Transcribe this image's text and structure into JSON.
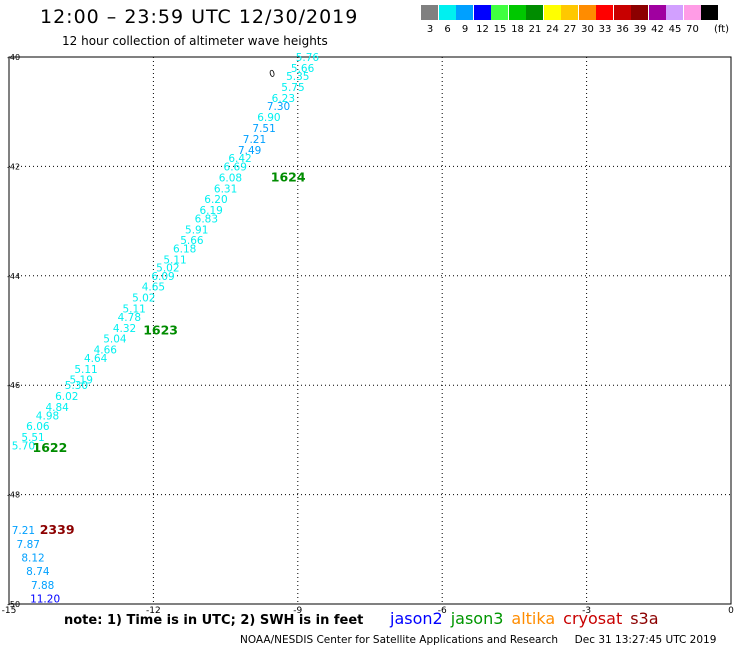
{
  "header": {
    "title": "12:00 – 23:59 UTC 12/30/2019",
    "subtitle": "12 hour collection of altimeter wave heights"
  },
  "color_scale": {
    "unit_label": "(ft)",
    "bins": [
      {
        "label": "3",
        "color": "#808080"
      },
      {
        "label": "6",
        "color": "#00f0f0"
      },
      {
        "label": "9",
        "color": "#00a0ff"
      },
      {
        "label": "12",
        "color": "#0000ff"
      },
      {
        "label": "15",
        "color": "#40ff40"
      },
      {
        "label": "18",
        "color": "#00c800"
      },
      {
        "label": "21",
        "color": "#008c00"
      },
      {
        "label": "24",
        "color": "#ffff00"
      },
      {
        "label": "27",
        "color": "#ffc800"
      },
      {
        "label": "30",
        "color": "#ff8c00"
      },
      {
        "label": "33",
        "color": "#ff0000"
      },
      {
        "label": "36",
        "color": "#c80000"
      },
      {
        "label": "39",
        "color": "#8c0000"
      },
      {
        "label": "42",
        "color": "#a000a0"
      },
      {
        "label": "45",
        "color": "#d2a0ff"
      },
      {
        "label": "70",
        "color": "#ff9ce6"
      },
      {
        "label": "",
        "color": "#000000"
      }
    ]
  },
  "chart_data": {
    "type": "scatter",
    "title": "12:00 – 23:59 UTC 12/30/2019",
    "subtitle": "12 hour collection of altimeter wave heights",
    "xlim": [
      -15,
      0
    ],
    "ylim": [
      -50,
      -40
    ],
    "x_ticks": [
      "-15",
      "-12",
      "-9",
      "-6",
      "-3",
      "0"
    ],
    "x_tick_values": [
      -15,
      -12,
      -9,
      -6,
      -3,
      0
    ],
    "y_ticks": [
      "-40",
      "-42",
      "-44",
      "-46",
      "-48",
      "-50"
    ],
    "y_tick_values": [
      -40,
      -42,
      -44,
      -46,
      -48,
      -50
    ],
    "grid": true,
    "track_points": [
      {
        "x": -8.8,
        "y": -40.0,
        "swh": "5.76",
        "color": "#00f0f0"
      },
      {
        "x": -8.9,
        "y": -40.2,
        "swh": "5.66",
        "color": "#00f0f0"
      },
      {
        "x": -9.0,
        "y": -40.35,
        "swh": "5.35",
        "color": "#00f0f0"
      },
      {
        "x": -9.1,
        "y": -40.55,
        "swh": "5.75",
        "color": "#00f0f0"
      },
      {
        "x": -9.3,
        "y": -40.75,
        "swh": "6.23",
        "color": "#00f0f0"
      },
      {
        "x": -9.4,
        "y": -40.9,
        "swh": "7.30",
        "color": "#00a0ff"
      },
      {
        "x": -9.6,
        "y": -41.1,
        "swh": "6.90",
        "color": "#00f0f0"
      },
      {
        "x": -9.7,
        "y": -41.3,
        "swh": "7.51",
        "color": "#00a0ff"
      },
      {
        "x": -9.9,
        "y": -41.5,
        "swh": "7.21",
        "color": "#00a0ff"
      },
      {
        "x": -10.0,
        "y": -41.7,
        "swh": "7.49",
        "color": "#00a0ff"
      },
      {
        "x": -10.2,
        "y": -41.85,
        "swh": "6.42",
        "color": "#00f0f0"
      },
      {
        "x": -10.3,
        "y": -42.0,
        "swh": "6.69",
        "color": "#00f0f0"
      },
      {
        "x": -10.4,
        "y": -42.2,
        "swh": "6.08",
        "color": "#00f0f0"
      },
      {
        "x": -10.5,
        "y": -42.4,
        "swh": "6.31",
        "color": "#00f0f0"
      },
      {
        "x": -10.7,
        "y": -42.6,
        "swh": "6.20",
        "color": "#00f0f0"
      },
      {
        "x": -10.8,
        "y": -42.8,
        "swh": "6.19",
        "color": "#00f0f0"
      },
      {
        "x": -10.9,
        "y": -42.95,
        "swh": "6.83",
        "color": "#00f0f0"
      },
      {
        "x": -11.1,
        "y": -43.15,
        "swh": "5.91",
        "color": "#00f0f0"
      },
      {
        "x": -11.2,
        "y": -43.35,
        "swh": "5.66",
        "color": "#00f0f0"
      },
      {
        "x": -11.35,
        "y": -43.5,
        "swh": "6.18",
        "color": "#00f0f0"
      },
      {
        "x": -11.55,
        "y": -43.7,
        "swh": "5.11",
        "color": "#00f0f0"
      },
      {
        "x": -11.7,
        "y": -43.85,
        "swh": "5.02",
        "color": "#00f0f0"
      },
      {
        "x": -11.8,
        "y": -44.0,
        "swh": "6.09",
        "color": "#00f0f0"
      },
      {
        "x": -12.0,
        "y": -44.2,
        "swh": "4.65",
        "color": "#00f0f0"
      },
      {
        "x": -12.2,
        "y": -44.4,
        "swh": "5.02",
        "color": "#00f0f0"
      },
      {
        "x": -12.4,
        "y": -44.6,
        "swh": "5.11",
        "color": "#00f0f0"
      },
      {
        "x": -12.5,
        "y": -44.75,
        "swh": "4.78",
        "color": "#00f0f0"
      },
      {
        "x": -12.6,
        "y": -44.95,
        "swh": "4.32",
        "color": "#00f0f0"
      },
      {
        "x": -12.8,
        "y": -45.15,
        "swh": "5.04",
        "color": "#00f0f0"
      },
      {
        "x": -13.0,
        "y": -45.35,
        "swh": "4.66",
        "color": "#00f0f0"
      },
      {
        "x": -13.2,
        "y": -45.5,
        "swh": "4.64",
        "color": "#00f0f0"
      },
      {
        "x": -13.4,
        "y": -45.7,
        "swh": "5.11",
        "color": "#00f0f0"
      },
      {
        "x": -13.5,
        "y": -45.9,
        "swh": "5.19",
        "color": "#00f0f0"
      },
      {
        "x": -13.6,
        "y": -46.0,
        "swh": "5.30",
        "color": "#00f0f0"
      },
      {
        "x": -13.8,
        "y": -46.2,
        "swh": "6.02",
        "color": "#00f0f0"
      },
      {
        "x": -14.0,
        "y": -46.4,
        "swh": "4.84",
        "color": "#00f0f0"
      },
      {
        "x": -14.2,
        "y": -46.55,
        "swh": "4.98",
        "color": "#00f0f0"
      },
      {
        "x": -14.4,
        "y": -46.75,
        "swh": "6.06",
        "color": "#00f0f0"
      },
      {
        "x": -14.5,
        "y": -46.95,
        "swh": "5.51",
        "color": "#00f0f0"
      },
      {
        "x": -14.7,
        "y": -47.1,
        "swh": "5.70",
        "color": "#00f0f0"
      },
      {
        "x": -14.7,
        "y": -48.65,
        "swh": "7.21",
        "color": "#00a0ff"
      },
      {
        "x": -14.6,
        "y": -48.9,
        "swh": "7.87",
        "color": "#00a0ff"
      },
      {
        "x": -14.5,
        "y": -49.15,
        "swh": "8.12",
        "color": "#00a0ff"
      },
      {
        "x": -14.4,
        "y": -49.4,
        "swh": "8.74",
        "color": "#00a0ff"
      },
      {
        "x": -14.3,
        "y": -49.65,
        "swh": "7.88",
        "color": "#00a0ff"
      },
      {
        "x": -14.25,
        "y": -49.9,
        "swh": "11.20",
        "color": "#0000ff"
      }
    ],
    "time_labels": [
      {
        "text": "1624",
        "x": -9.2,
        "y": -42.2,
        "color": "#008c00"
      },
      {
        "text": "1623",
        "x": -11.85,
        "y": -45.0,
        "color": "#008c00"
      },
      {
        "text": "1622",
        "x": -14.15,
        "y": -47.15,
        "color": "#008c00"
      },
      {
        "text": "2339",
        "x": -14.0,
        "y": -48.65,
        "color": "#8c0000"
      }
    ],
    "marker_label": {
      "text": "0",
      "x": -9.5,
      "y": -40.35
    }
  },
  "footer": {
    "note": "note:  1) Time is in UTC;  2) SWH is in feet",
    "satellites": [
      {
        "name": "jason2",
        "color": "#0000ff"
      },
      {
        "name": "jason3",
        "color": "#009600"
      },
      {
        "name": "altika",
        "color": "#ff8c00"
      },
      {
        "name": "cryosat",
        "color": "#c80000"
      },
      {
        "name": "s3a",
        "color": "#8c0000"
      }
    ],
    "credit": "NOAA/NESDIS Center for Satellite Applications and Research     Dec 31 13:27:45 UTC 2019"
  }
}
